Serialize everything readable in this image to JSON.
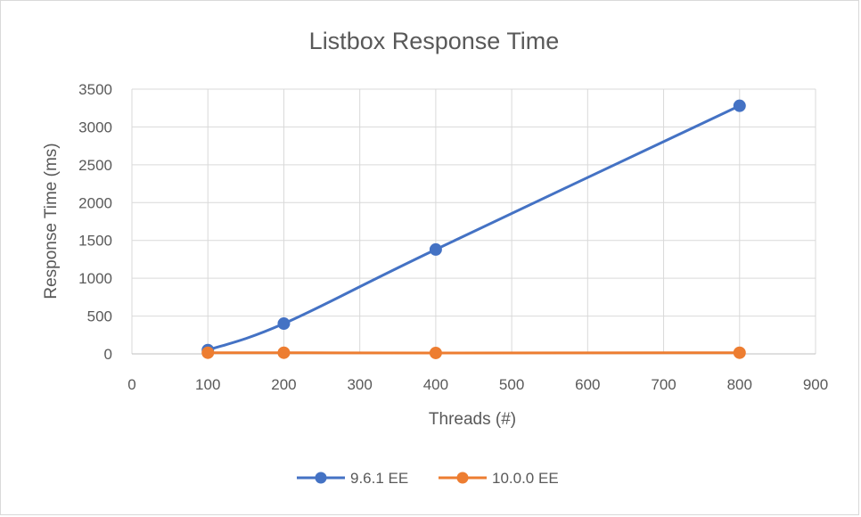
{
  "chart_data": {
    "type": "scatter",
    "title": "Listbox Response Time",
    "xlabel": "Threads (#)",
    "ylabel": "Response Time (ms)",
    "xlim": [
      0,
      900
    ],
    "ylim": [
      0,
      3500
    ],
    "xticks": [
      0,
      100,
      200,
      300,
      400,
      500,
      600,
      700,
      800,
      900
    ],
    "yticks": [
      0,
      500,
      1000,
      1500,
      2000,
      2500,
      3000,
      3500
    ],
    "grid": true,
    "legend_position": "bottom",
    "series": [
      {
        "name": "9.6.1 EE",
        "color": "#4472C4",
        "smooth": true,
        "x": [
          100,
          200,
          400,
          800
        ],
        "y": [
          50,
          400,
          1380,
          3280
        ]
      },
      {
        "name": "10.0.0 EE",
        "color": "#ED7D31",
        "smooth": true,
        "x": [
          100,
          200,
          400,
          800
        ],
        "y": [
          15,
          15,
          12,
          15
        ]
      }
    ]
  }
}
